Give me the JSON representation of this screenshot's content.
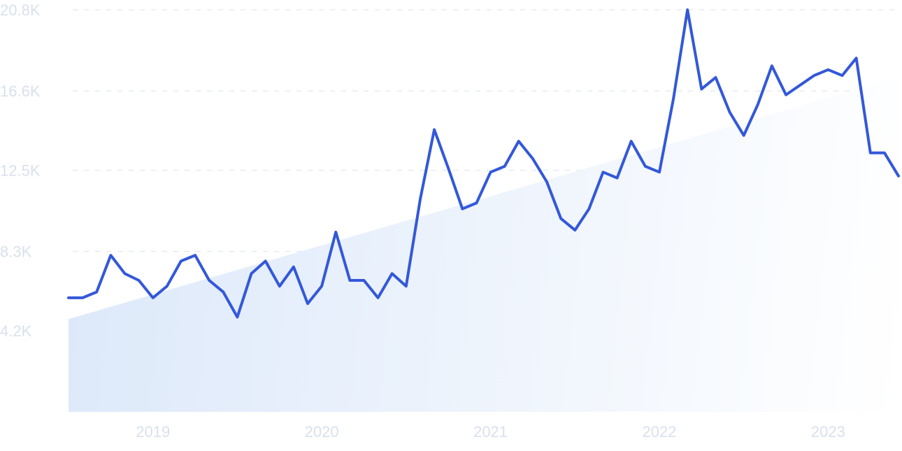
{
  "chart_data": {
    "type": "line",
    "title": "",
    "xlabel": "",
    "ylabel": "",
    "ylim": [
      0,
      20800
    ],
    "y_ticks": [
      {
        "value": 4200,
        "label": "4.2K"
      },
      {
        "value": 8300,
        "label": "8.3K"
      },
      {
        "value": 12500,
        "label": "12.5K"
      },
      {
        "value": 16600,
        "label": "16.6K"
      },
      {
        "value": 20800,
        "label": "20.8K"
      }
    ],
    "x_ticks": [
      {
        "value": "2019-01",
        "label": "2019"
      },
      {
        "value": "2020-01",
        "label": "2020"
      },
      {
        "value": "2021-01",
        "label": "2021"
      },
      {
        "value": "2022-01",
        "label": "2022"
      },
      {
        "value": "2023-01",
        "label": "2023"
      }
    ],
    "grid": true,
    "series": [
      {
        "color": "#3358d9",
        "x": [
          "2018-07",
          "2018-08",
          "2018-09",
          "2018-10",
          "2018-11",
          "2018-12",
          "2019-01",
          "2019-02",
          "2019-03",
          "2019-04",
          "2019-05",
          "2019-06",
          "2019-07",
          "2019-08",
          "2019-09",
          "2019-10",
          "2019-11",
          "2019-12",
          "2020-01",
          "2020-02",
          "2020-03",
          "2020-04",
          "2020-05",
          "2020-06",
          "2020-07",
          "2020-08",
          "2020-09",
          "2020-10",
          "2020-11",
          "2020-12",
          "2021-01",
          "2021-02",
          "2021-03",
          "2021-04",
          "2021-05",
          "2021-06",
          "2021-07",
          "2021-08",
          "2021-09",
          "2021-10",
          "2021-11",
          "2021-12",
          "2022-01",
          "2022-02",
          "2022-03",
          "2022-04",
          "2022-05",
          "2022-06",
          "2022-07",
          "2022-08",
          "2022-09",
          "2022-10",
          "2022-11",
          "2022-12",
          "2023-01",
          "2023-02",
          "2023-03",
          "2023-04",
          "2023-05",
          "2023-06"
        ],
        "values": [
          5900,
          5900,
          6200,
          8100,
          7150,
          6800,
          5900,
          6500,
          7800,
          8100,
          6800,
          6200,
          4900,
          7150,
          7800,
          6500,
          7500,
          5600,
          6500,
          9300,
          6800,
          6800,
          5900,
          7150,
          6500,
          11000,
          14600,
          12600,
          10500,
          10800,
          12400,
          12700,
          14000,
          13100,
          11900,
          10000,
          9400,
          10500,
          12400,
          12100,
          14000,
          12700,
          12400,
          16200,
          20800,
          16700,
          17300,
          15500,
          14300,
          15900,
          17900,
          16400,
          16900,
          17400,
          17700,
          17400,
          18300,
          13400,
          13400,
          12200
        ]
      }
    ],
    "trend": {
      "color": "#e3edfb",
      "start_value": 4800,
      "end_value": 17300
    }
  }
}
